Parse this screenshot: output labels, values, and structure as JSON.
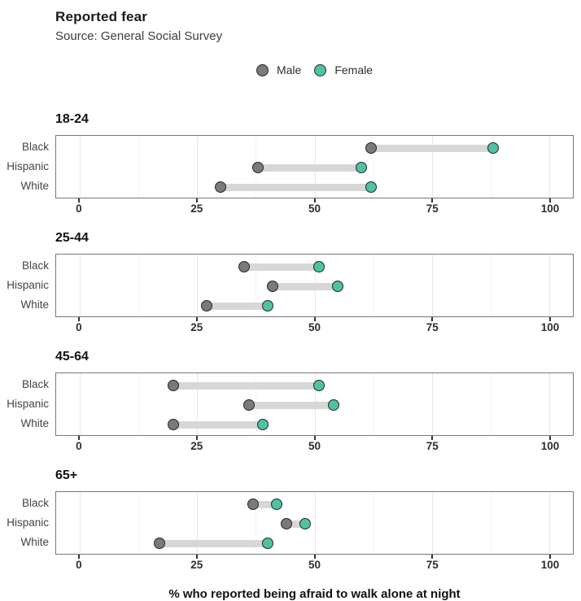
{
  "header": {
    "title": "Reported fear",
    "subtitle": "Source: General Social Survey"
  },
  "legend": {
    "items": [
      {
        "label": "Male",
        "color": "#7a7a7a"
      },
      {
        "label": "Female",
        "color": "#4fc2a3"
      }
    ]
  },
  "colors": {
    "male": "#7a7a7a",
    "female": "#4fc2a3",
    "dot_border": "#262626",
    "bar": "#d7d7d7",
    "grid_major": "#e7e7e7",
    "grid_minor": "#f4f4f4",
    "panel_border": "#777777",
    "tick": "#333333"
  },
  "chart_data": {
    "type": "dumbbell",
    "title": "Reported fear",
    "subtitle": "Source: General Social Survey",
    "xlabel": "% who reported being afraid to walk alone at night",
    "legend_position": "top-center",
    "series_names": [
      "Male",
      "Female"
    ],
    "grid": true,
    "axis": {
      "min": -5,
      "max": 105,
      "major_ticks": [
        0,
        25,
        50,
        75,
        100
      ],
      "minor_ticks": [
        12.5,
        37.5,
        62.5,
        87.5
      ]
    },
    "facets": [
      {
        "label": "18-24",
        "rows": [
          {
            "category": "Black",
            "male": 62,
            "female": 88
          },
          {
            "category": "Hispanic",
            "male": 38,
            "female": 60
          },
          {
            "category": "White",
            "male": 30,
            "female": 62
          }
        ]
      },
      {
        "label": "25-44",
        "rows": [
          {
            "category": "Black",
            "male": 35,
            "female": 51
          },
          {
            "category": "Hispanic",
            "male": 41,
            "female": 55
          },
          {
            "category": "White",
            "male": 27,
            "female": 40
          }
        ]
      },
      {
        "label": "45-64",
        "rows": [
          {
            "category": "Black",
            "male": 20,
            "female": 51
          },
          {
            "category": "Hispanic",
            "male": 36,
            "female": 54
          },
          {
            "category": "White",
            "male": 20,
            "female": 39
          }
        ]
      },
      {
        "label": "65+",
        "rows": [
          {
            "category": "Black",
            "male": 37,
            "female": 42
          },
          {
            "category": "Hispanic",
            "male": 44,
            "female": 48
          },
          {
            "category": "White",
            "male": 17,
            "female": 40
          }
        ]
      }
    ]
  }
}
